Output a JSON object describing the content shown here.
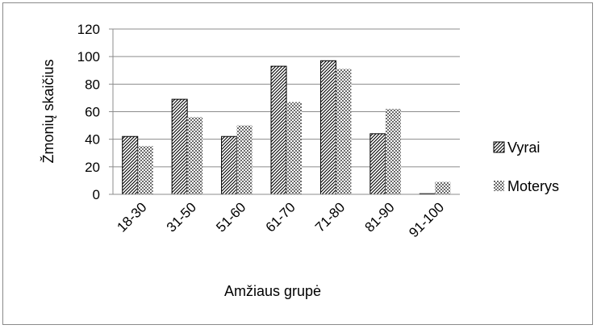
{
  "chart_data": {
    "type": "bar",
    "categories": [
      "18-30",
      "31-50",
      "51-60",
      "61-70",
      "71-80",
      "81-90",
      "91-100"
    ],
    "series": [
      {
        "name": "Vyrai",
        "values": [
          42,
          69,
          42,
          93,
          97,
          44,
          0
        ],
        "pattern": "diagonal-hatch"
      },
      {
        "name": "Moterys",
        "values": [
          35,
          56,
          50,
          67,
          91,
          62,
          9
        ],
        "pattern": "crosshatch"
      }
    ],
    "title": "",
    "xlabel": "Amžiaus grupė",
    "ylabel": "Žmonių skaičius",
    "ylim": [
      0,
      120
    ],
    "yticks": [
      0,
      20,
      40,
      60,
      80,
      100,
      120
    ],
    "grid": true,
    "legend_position": "right"
  }
}
